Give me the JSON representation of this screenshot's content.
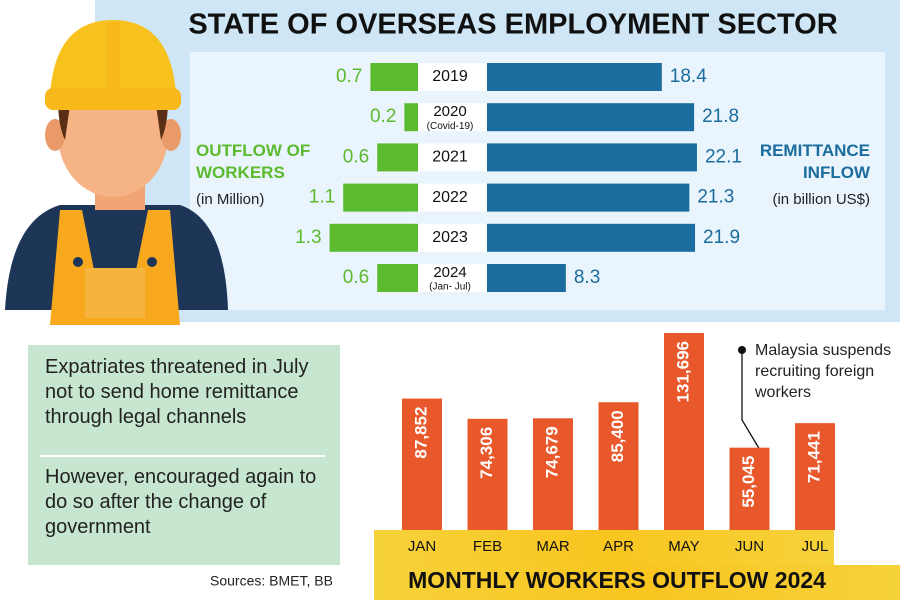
{
  "title": "STATE OF OVERSEAS EMPLOYMENT SECTOR",
  "chart_data": [
    {
      "type": "butterfly",
      "categories": [
        "2019",
        "2020",
        "2021",
        "2022",
        "2023",
        "2024"
      ],
      "category_notes": [
        null,
        "(Covid-19)",
        null,
        null,
        null,
        "(Jan- Jul)"
      ],
      "series": [
        {
          "name": "OUTFLOW OF WORKERS",
          "unit": "(in Million)",
          "color": "#5cba2f",
          "values": [
            0.7,
            0.2,
            0.6,
            1.1,
            1.3,
            0.6
          ]
        },
        {
          "name": "REMITTANCE INFLOW",
          "unit": "(in billion US$)",
          "color": "#1a6d9e",
          "values": [
            18.4,
            21.8,
            22.1,
            21.3,
            21.9,
            8.3
          ]
        }
      ]
    },
    {
      "type": "bar",
      "title": "MONTHLY WORKERS OUTFLOW 2024",
      "categories": [
        "JAN",
        "FEB",
        "MAR",
        "APR",
        "MAY",
        "JUN",
        "JUL"
      ],
      "values": [
        87852,
        74306,
        74679,
        85400,
        131696,
        55045,
        71441
      ],
      "value_labels": [
        "87,852",
        "74,306",
        "74,679",
        "85,400",
        "131,696",
        "55,045",
        "71,441"
      ],
      "color": "#e8582a",
      "annotation": "Malaysia suspends recruiting foreign workers"
    }
  ],
  "notes": [
    "Expatriates threatened in July not to send home remittance through legal channels",
    "However, encouraged again to do so after the change of government"
  ],
  "sources": "Sources: BMET, BB"
}
